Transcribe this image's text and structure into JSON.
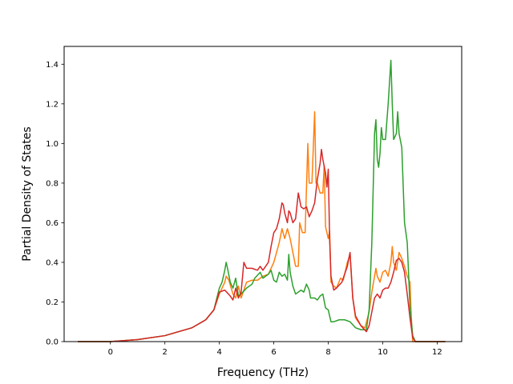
{
  "chart_data": {
    "type": "line",
    "title": "",
    "xlabel": "Frequency (THz)",
    "ylabel": "Partial Density of States",
    "xlim": [
      -1.7,
      12.9
    ],
    "ylim": [
      0.0,
      1.49
    ],
    "xticks": [
      0,
      2,
      4,
      6,
      8,
      10,
      12
    ],
    "xtick_labels": [
      "0",
      "2",
      "4",
      "6",
      "8",
      "10",
      "12"
    ],
    "yticks": [
      0.0,
      0.2,
      0.4,
      0.6,
      0.8,
      1.0,
      1.2,
      1.4
    ],
    "ytick_labels": [
      "0.0",
      "0.2",
      "0.4",
      "0.6",
      "0.8",
      "1.0",
      "1.2",
      "1.4"
    ],
    "grid": false,
    "legend": "none",
    "series": [
      {
        "color": "#ff7f0e",
        "points": [
          [
            -1.2,
            0
          ],
          [
            0,
            0
          ],
          [
            1,
            0.01
          ],
          [
            2,
            0.03
          ],
          [
            3,
            0.07
          ],
          [
            3.5,
            0.11
          ],
          [
            3.8,
            0.16
          ],
          [
            4.0,
            0.24
          ],
          [
            4.2,
            0.3
          ],
          [
            4.25,
            0.33
          ],
          [
            4.35,
            0.31
          ],
          [
            4.5,
            0.24
          ],
          [
            4.6,
            0.22
          ],
          [
            4.7,
            0.28
          ],
          [
            4.8,
            0.22
          ],
          [
            5.0,
            0.3
          ],
          [
            5.2,
            0.31
          ],
          [
            5.4,
            0.31
          ],
          [
            5.6,
            0.33
          ],
          [
            5.8,
            0.34
          ],
          [
            6.0,
            0.4
          ],
          [
            6.1,
            0.45
          ],
          [
            6.2,
            0.5
          ],
          [
            6.3,
            0.57
          ],
          [
            6.4,
            0.52
          ],
          [
            6.5,
            0.57
          ],
          [
            6.6,
            0.52
          ],
          [
            6.7,
            0.45
          ],
          [
            6.8,
            0.38
          ],
          [
            6.9,
            0.38
          ],
          [
            6.95,
            0.6
          ],
          [
            7.05,
            0.55
          ],
          [
            7.15,
            0.55
          ],
          [
            7.25,
            1.0
          ],
          [
            7.3,
            0.8
          ],
          [
            7.4,
            0.8
          ],
          [
            7.5,
            1.16
          ],
          [
            7.55,
            0.8
          ],
          [
            7.6,
            0.8
          ],
          [
            7.7,
            0.75
          ],
          [
            7.8,
            0.75
          ],
          [
            7.85,
            0.89
          ],
          [
            7.9,
            0.58
          ],
          [
            8.0,
            0.52
          ],
          [
            8.05,
            0.56
          ],
          [
            8.1,
            0.3
          ],
          [
            8.2,
            0.28
          ],
          [
            8.3,
            0.27
          ],
          [
            8.45,
            0.32
          ],
          [
            8.55,
            0.31
          ],
          [
            8.7,
            0.4
          ],
          [
            8.8,
            0.44
          ],
          [
            8.9,
            0.22
          ],
          [
            9.0,
            0.12
          ],
          [
            9.2,
            0.08
          ],
          [
            9.35,
            0.07
          ],
          [
            9.5,
            0.15
          ],
          [
            9.6,
            0.25
          ],
          [
            9.7,
            0.33
          ],
          [
            9.75,
            0.37
          ],
          [
            9.8,
            0.33
          ],
          [
            9.9,
            0.3
          ],
          [
            10.0,
            0.35
          ],
          [
            10.1,
            0.36
          ],
          [
            10.2,
            0.33
          ],
          [
            10.3,
            0.4
          ],
          [
            10.35,
            0.48
          ],
          [
            10.4,
            0.4
          ],
          [
            10.5,
            0.36
          ],
          [
            10.6,
            0.45
          ],
          [
            10.7,
            0.42
          ],
          [
            10.8,
            0.38
          ],
          [
            10.9,
            0.33
          ],
          [
            11.0,
            0.3
          ],
          [
            11.05,
            0.12
          ],
          [
            11.1,
            0
          ],
          [
            11.2,
            0
          ],
          [
            12.3,
            0
          ]
        ]
      },
      {
        "color": "#2ca02c",
        "points": [
          [
            -1.2,
            0
          ],
          [
            0,
            0
          ],
          [
            1,
            0.01
          ],
          [
            2,
            0.03
          ],
          [
            3,
            0.07
          ],
          [
            3.5,
            0.11
          ],
          [
            3.8,
            0.16
          ],
          [
            4.0,
            0.27
          ],
          [
            4.1,
            0.3
          ],
          [
            4.2,
            0.36
          ],
          [
            4.25,
            0.4
          ],
          [
            4.3,
            0.37
          ],
          [
            4.4,
            0.3
          ],
          [
            4.5,
            0.27
          ],
          [
            4.6,
            0.32
          ],
          [
            4.7,
            0.23
          ],
          [
            4.8,
            0.24
          ],
          [
            5.0,
            0.27
          ],
          [
            5.2,
            0.29
          ],
          [
            5.3,
            0.32
          ],
          [
            5.5,
            0.35
          ],
          [
            5.6,
            0.32
          ],
          [
            5.8,
            0.34
          ],
          [
            5.9,
            0.36
          ],
          [
            6.0,
            0.31
          ],
          [
            6.1,
            0.3
          ],
          [
            6.2,
            0.35
          ],
          [
            6.3,
            0.33
          ],
          [
            6.4,
            0.34
          ],
          [
            6.5,
            0.31
          ],
          [
            6.55,
            0.44
          ],
          [
            6.6,
            0.35
          ],
          [
            6.7,
            0.28
          ],
          [
            6.8,
            0.24
          ],
          [
            6.9,
            0.25
          ],
          [
            7.0,
            0.26
          ],
          [
            7.1,
            0.25
          ],
          [
            7.2,
            0.29
          ],
          [
            7.3,
            0.26
          ],
          [
            7.35,
            0.22
          ],
          [
            7.5,
            0.22
          ],
          [
            7.6,
            0.21
          ],
          [
            7.7,
            0.23
          ],
          [
            7.8,
            0.24
          ],
          [
            7.9,
            0.17
          ],
          [
            8.0,
            0.16
          ],
          [
            8.05,
            0.13
          ],
          [
            8.1,
            0.1
          ],
          [
            8.2,
            0.1
          ],
          [
            8.4,
            0.11
          ],
          [
            8.6,
            0.11
          ],
          [
            8.8,
            0.1
          ],
          [
            9.0,
            0.07
          ],
          [
            9.2,
            0.06
          ],
          [
            9.3,
            0.06
          ],
          [
            9.4,
            0.06
          ],
          [
            9.5,
            0.16
          ],
          [
            9.6,
            0.5
          ],
          [
            9.7,
            1.05
          ],
          [
            9.75,
            1.12
          ],
          [
            9.8,
            0.92
          ],
          [
            9.85,
            0.88
          ],
          [
            9.9,
            0.95
          ],
          [
            9.95,
            1.08
          ],
          [
            10.0,
            1.02
          ],
          [
            10.1,
            1.02
          ],
          [
            10.2,
            1.2
          ],
          [
            10.3,
            1.42
          ],
          [
            10.35,
            1.2
          ],
          [
            10.4,
            1.02
          ],
          [
            10.5,
            1.05
          ],
          [
            10.55,
            1.16
          ],
          [
            10.6,
            1.05
          ],
          [
            10.7,
            0.98
          ],
          [
            10.8,
            0.6
          ],
          [
            10.9,
            0.5
          ],
          [
            11.0,
            0.18
          ],
          [
            11.1,
            0.03
          ],
          [
            11.2,
            0
          ],
          [
            12.3,
            0
          ]
        ]
      },
      {
        "color": "#d62728",
        "points": [
          [
            -1.2,
            0
          ],
          [
            0,
            0
          ],
          [
            1,
            0.01
          ],
          [
            2,
            0.03
          ],
          [
            3,
            0.07
          ],
          [
            3.5,
            0.11
          ],
          [
            3.8,
            0.16
          ],
          [
            4.0,
            0.25
          ],
          [
            4.2,
            0.26
          ],
          [
            4.4,
            0.23
          ],
          [
            4.5,
            0.21
          ],
          [
            4.6,
            0.27
          ],
          [
            4.7,
            0.22
          ],
          [
            4.8,
            0.25
          ],
          [
            4.9,
            0.4
          ],
          [
            5.0,
            0.37
          ],
          [
            5.2,
            0.37
          ],
          [
            5.4,
            0.36
          ],
          [
            5.5,
            0.38
          ],
          [
            5.6,
            0.36
          ],
          [
            5.8,
            0.4
          ],
          [
            5.9,
            0.48
          ],
          [
            6.0,
            0.55
          ],
          [
            6.1,
            0.57
          ],
          [
            6.2,
            0.62
          ],
          [
            6.3,
            0.7
          ],
          [
            6.35,
            0.69
          ],
          [
            6.4,
            0.65
          ],
          [
            6.5,
            0.6
          ],
          [
            6.55,
            0.66
          ],
          [
            6.6,
            0.65
          ],
          [
            6.7,
            0.6
          ],
          [
            6.8,
            0.62
          ],
          [
            6.9,
            0.75
          ],
          [
            7.0,
            0.68
          ],
          [
            7.1,
            0.67
          ],
          [
            7.2,
            0.68
          ],
          [
            7.3,
            0.63
          ],
          [
            7.4,
            0.66
          ],
          [
            7.5,
            0.7
          ],
          [
            7.6,
            0.82
          ],
          [
            7.7,
            0.9
          ],
          [
            7.75,
            0.97
          ],
          [
            7.8,
            0.92
          ],
          [
            7.9,
            0.85
          ],
          [
            7.95,
            0.78
          ],
          [
            8.0,
            0.87
          ],
          [
            8.05,
            0.52
          ],
          [
            8.1,
            0.33
          ],
          [
            8.2,
            0.26
          ],
          [
            8.3,
            0.27
          ],
          [
            8.5,
            0.3
          ],
          [
            8.7,
            0.38
          ],
          [
            8.8,
            0.45
          ],
          [
            8.9,
            0.22
          ],
          [
            9.0,
            0.13
          ],
          [
            9.2,
            0.08
          ],
          [
            9.4,
            0.05
          ],
          [
            9.5,
            0.08
          ],
          [
            9.6,
            0.15
          ],
          [
            9.7,
            0.22
          ],
          [
            9.8,
            0.24
          ],
          [
            9.9,
            0.22
          ],
          [
            10.0,
            0.26
          ],
          [
            10.1,
            0.27
          ],
          [
            10.2,
            0.27
          ],
          [
            10.3,
            0.3
          ],
          [
            10.4,
            0.35
          ],
          [
            10.5,
            0.41
          ],
          [
            10.6,
            0.42
          ],
          [
            10.7,
            0.4
          ],
          [
            10.8,
            0.35
          ],
          [
            10.9,
            0.24
          ],
          [
            11.0,
            0.12
          ],
          [
            11.1,
            0.02
          ],
          [
            11.2,
            0
          ],
          [
            12.3,
            0
          ]
        ]
      }
    ]
  }
}
